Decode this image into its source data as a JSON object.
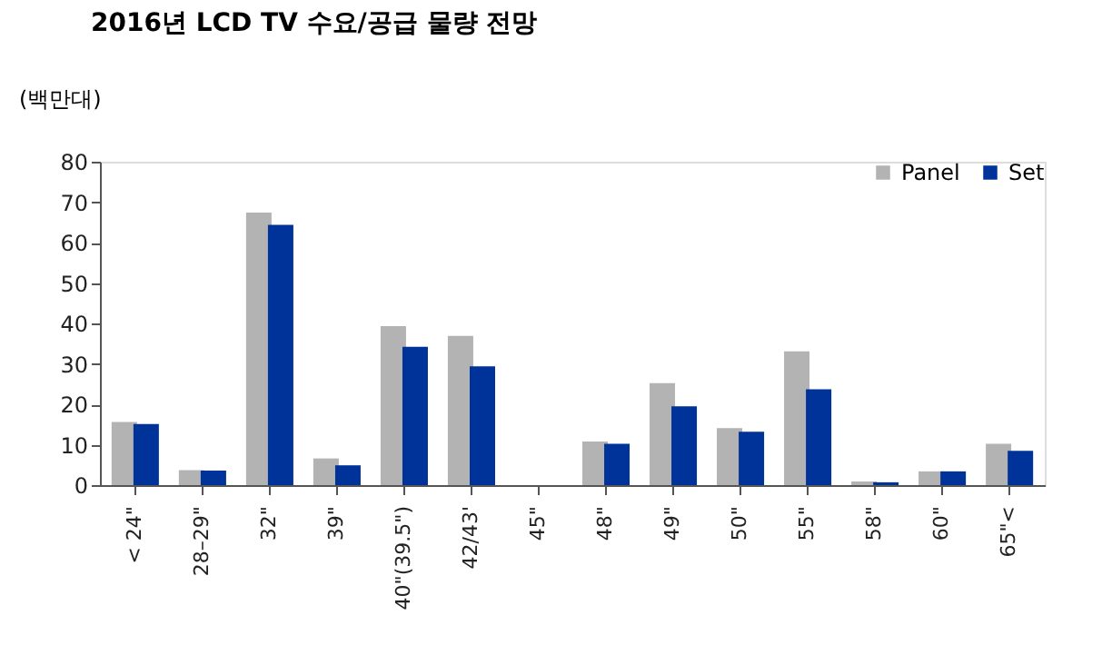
{
  "chart_data": {
    "type": "bar",
    "title": "2016년 LCD TV 수요/공급 물량 전망",
    "ylabel": "(백만대)",
    "categories": [
      "< 24\"",
      "28–29\"",
      "32\"",
      "39\"",
      "40\"(39.5\")",
      "42/43'",
      "45\"",
      "48\"",
      "49\"",
      "50\"",
      "55\"",
      "58\"",
      "60\"",
      "65\"<"
    ],
    "series": [
      {
        "name": "Panel",
        "color": "#b3b3b3",
        "values": [
          15.6,
          3.7,
          67.4,
          6.6,
          39.3,
          36.9,
          0,
          10.8,
          25.2,
          14.1,
          33.1,
          0.9,
          3.4,
          10.2
        ]
      },
      {
        "name": "Set",
        "color": "#003399",
        "values": [
          15.1,
          3.6,
          64.4,
          4.9,
          34.2,
          29.4,
          0,
          10.2,
          19.5,
          13.2,
          23.7,
          0.7,
          3.4,
          8.5
        ]
      }
    ],
    "ylim": [
      0,
      80
    ],
    "yticks": [
      0,
      10,
      20,
      30,
      40,
      50,
      60,
      70,
      80
    ],
    "grid": false,
    "legend": "top right"
  }
}
